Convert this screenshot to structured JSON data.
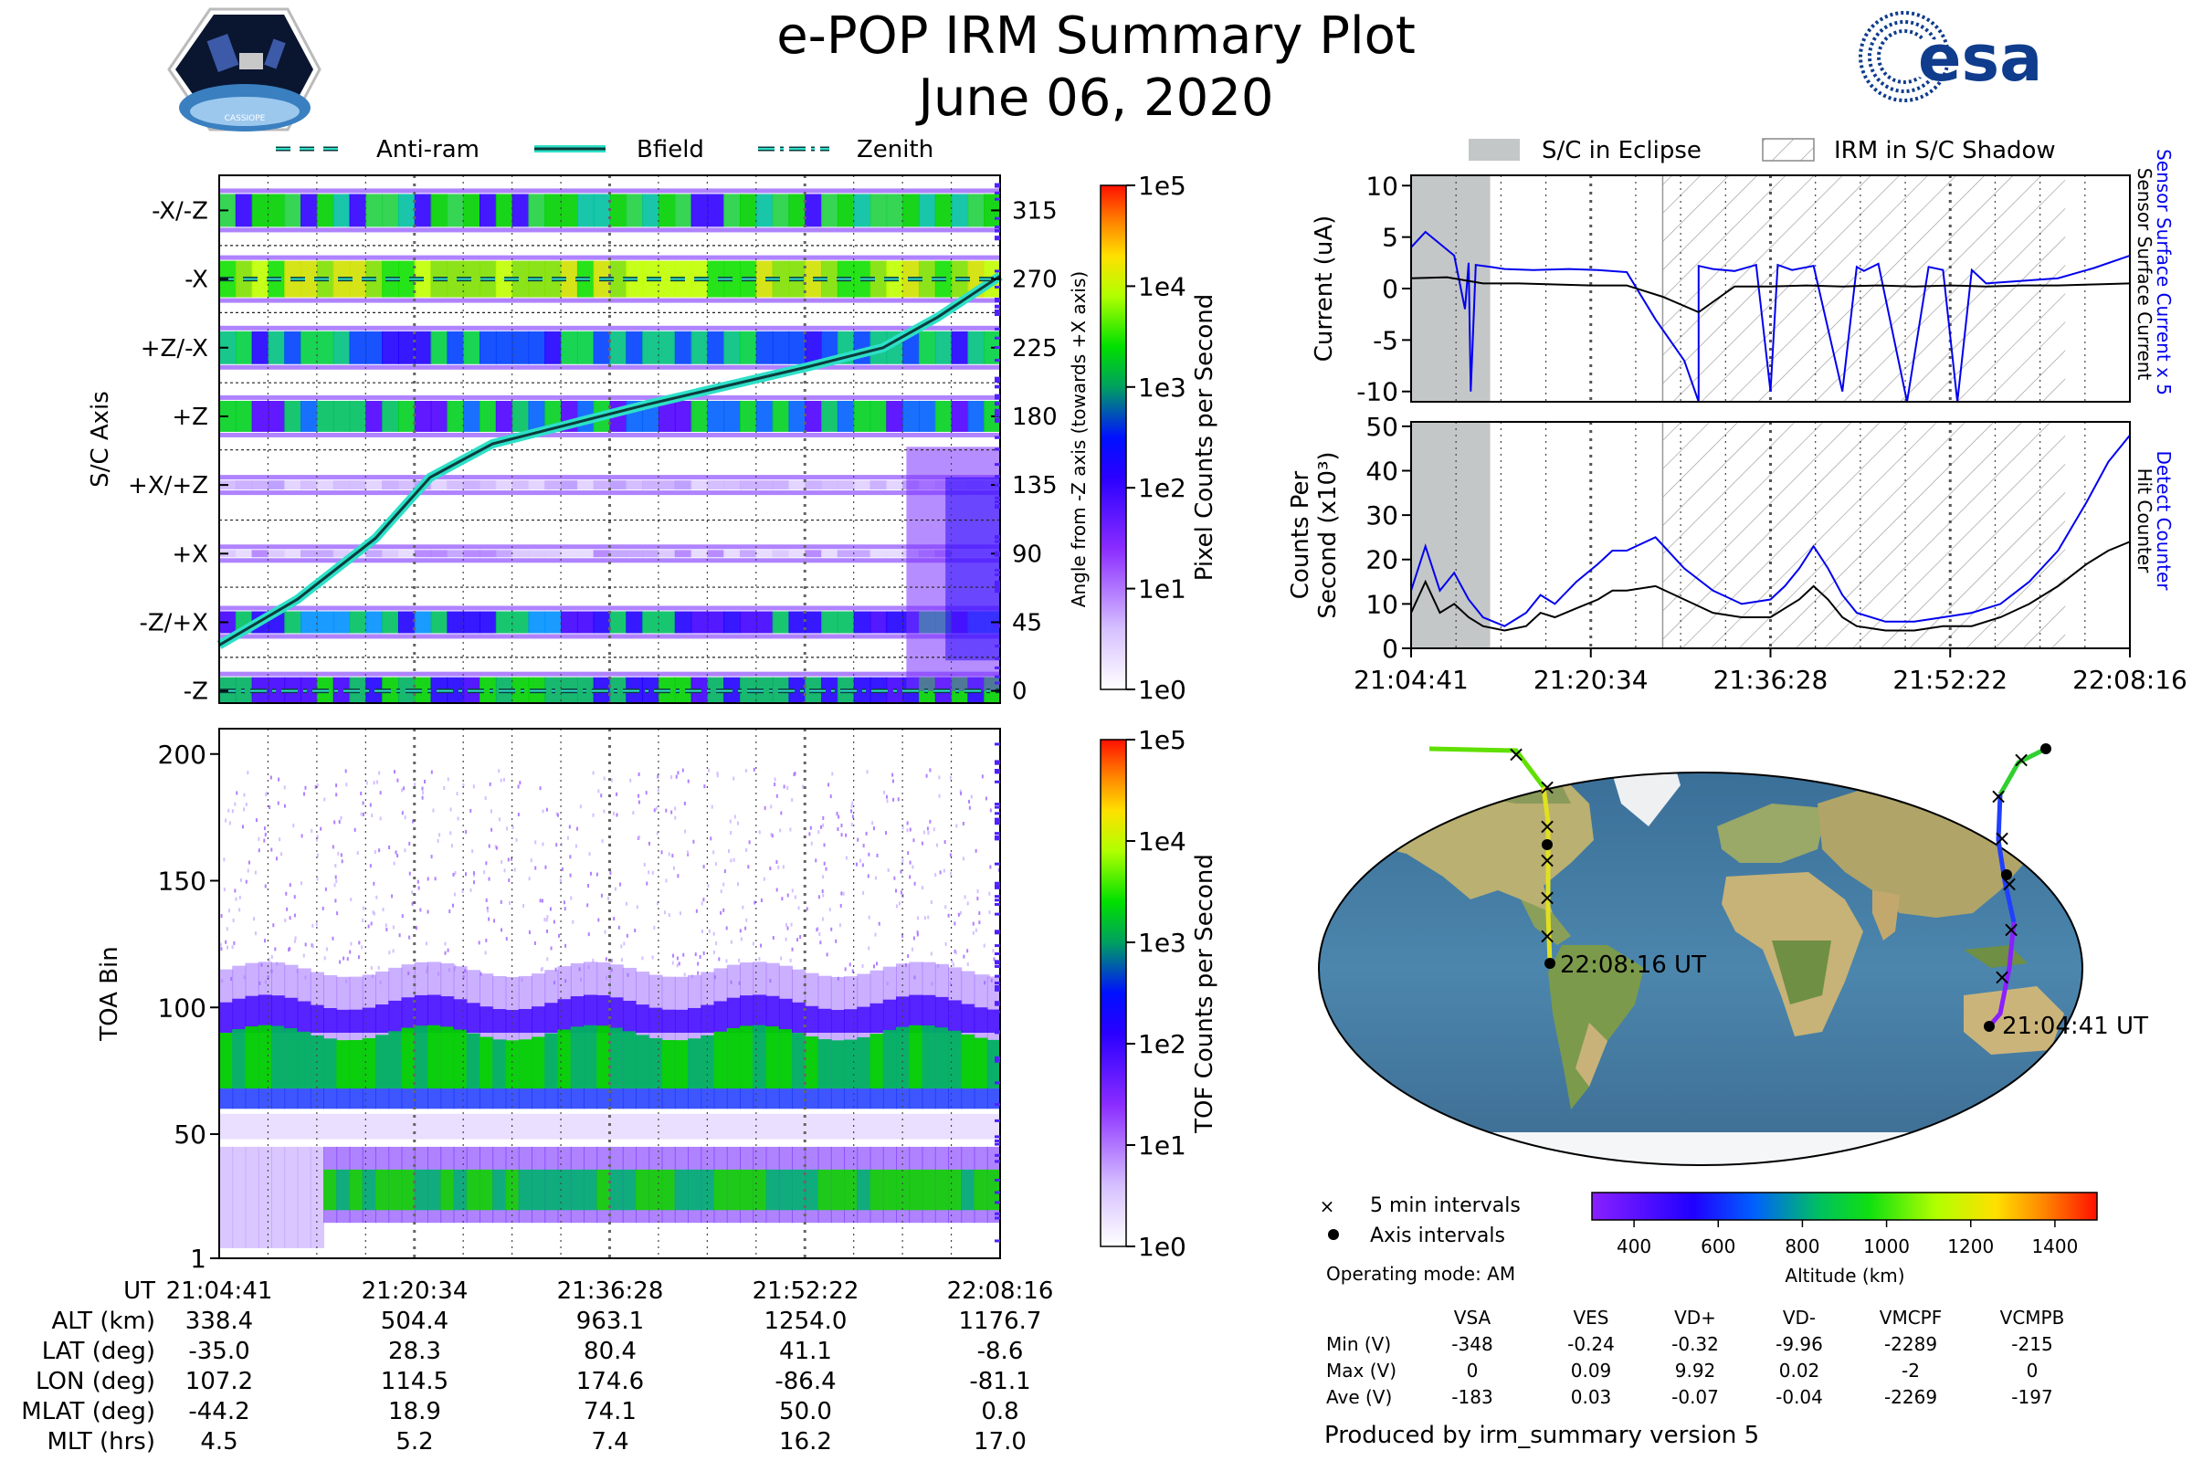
{
  "header": {
    "title": "e-POP IRM Summary Plot",
    "date": "June 06, 2020",
    "cassiope_badge": "CASSIOPE",
    "esa_logo": "esa"
  },
  "colors": {
    "bfield": "#0b3c3c",
    "bfield_glow": "#2de0c8",
    "sensor_current": "#0000ee",
    "eclipse": "#c4c7c7",
    "spectrum": [
      "#ffffff",
      "#dcc8ff",
      "#a040ff",
      "#5000ff",
      "#0000ff",
      "#0090ff",
      "#00c080",
      "#00e000",
      "#80ff00",
      "#ffff00",
      "#ffa000",
      "#ff2000"
    ]
  },
  "legend_top": {
    "items": [
      "Anti-ram",
      "Bfield",
      "Zenith"
    ]
  },
  "legend_right": {
    "eclipse": "S/C in Eclipse",
    "shadow": "IRM in S/C Shadow"
  },
  "chart_data": [
    {
      "id": "sc_axis",
      "type": "heatmap",
      "ylabel": "S/C Axis",
      "ylabel_right": "Angle from -Z axis (towards +X axis)",
      "axis_labels": [
        "-X/-Z",
        "-X",
        "+Z/-X",
        "+Z",
        "+X/+Z",
        "+X",
        "-Z/+X",
        "-Z"
      ],
      "angle_ticks": [
        315,
        270,
        225,
        180,
        135,
        90,
        45,
        0
      ],
      "colorbar": {
        "label": "Pixel Counts per Second",
        "ticks": [
          "1e5",
          "1e4",
          "1e3",
          "1e2",
          "1e1",
          "1e0"
        ]
      },
      "bfield_angle": {
        "x": [
          0,
          0.1,
          0.2,
          0.27,
          0.35,
          0.45,
          0.55,
          0.65,
          0.75,
          0.85,
          0.92,
          1.0
        ],
        "y": [
          30,
          60,
          100,
          140,
          162,
          175,
          188,
          200,
          212,
          225,
          245,
          272
        ]
      },
      "antiram_angle": 270,
      "zenith_angle": 0
    },
    {
      "id": "toa",
      "type": "heatmap",
      "ylabel": "TOA Bin",
      "yticks": [
        200,
        150,
        100,
        50,
        1
      ],
      "ylim": [
        1,
        210
      ],
      "colorbar": {
        "label": "TOF Counts per Second",
        "ticks": [
          "1e5",
          "1e4",
          "1e3",
          "1e2",
          "1e1",
          "1e0"
        ]
      }
    },
    {
      "id": "current",
      "type": "line",
      "ylabel": "Current (uA)",
      "yticks": [
        10,
        5,
        0,
        -5,
        -10
      ],
      "ylim": [
        -11,
        11
      ],
      "right_labels": [
        "Sensor Surface Current x 5",
        "Sensor Surface Current"
      ],
      "series": [
        {
          "name": "Sensor Surface Current x 5",
          "x": [
            0,
            0.02,
            0.06,
            0.075,
            0.08,
            0.083,
            0.09,
            0.11,
            0.13,
            0.17,
            0.22,
            0.26,
            0.3,
            0.34,
            0.38,
            0.4,
            0.4,
            0.42,
            0.45,
            0.48,
            0.5,
            0.51,
            0.53,
            0.56,
            0.6,
            0.62,
            0.63,
            0.65,
            0.69,
            0.72,
            0.74,
            0.76,
            0.78,
            0.8,
            0.84,
            0.9,
            0.95,
            1.0
          ],
          "y": [
            4,
            5.5,
            3.2,
            -2,
            2.5,
            -10,
            2.3,
            2.1,
            1.9,
            1.8,
            1.9,
            1.8,
            1.6,
            -3,
            -7,
            -11,
            2.2,
            1.9,
            1.7,
            2.3,
            -10,
            2.3,
            1.8,
            2.2,
            -10,
            2.1,
            1.7,
            2.4,
            -11,
            2.1,
            1.8,
            -11,
            1.8,
            0.5,
            0.7,
            1,
            2,
            3.2
          ]
        },
        {
          "name": "Sensor Surface Current",
          "x": [
            0,
            0.05,
            0.1,
            0.15,
            0.2,
            0.25,
            0.3,
            0.35,
            0.4,
            0.45,
            0.5,
            0.55,
            0.6,
            0.65,
            0.7,
            0.75,
            0.8,
            0.85,
            0.9,
            0.95,
            1.0
          ],
          "y": [
            1,
            1.1,
            0.5,
            0.5,
            0.4,
            0.3,
            0.3,
            -0.8,
            -2.3,
            0.2,
            0.2,
            0.3,
            0.2,
            0.3,
            0.2,
            0.3,
            0.2,
            0.3,
            0.3,
            0.4,
            0.5
          ]
        }
      ]
    },
    {
      "id": "counts",
      "type": "line",
      "ylabel": "Counts Per Second (x10³)",
      "ylabel_line1": "Counts Per",
      "ylabel_line2": "Second (x10³)",
      "yticks": [
        50,
        40,
        30,
        20,
        10,
        0
      ],
      "ylim": [
        0,
        51
      ],
      "right_labels": [
        "Detect Counter",
        "Hit Counter"
      ],
      "xticks": [
        "21:04:41",
        "21:20:34",
        "21:36:28",
        "21:52:22",
        "22:08:16"
      ],
      "eclipse_range": [
        0,
        0.11
      ],
      "shadow_range": [
        0.35,
        0.91
      ],
      "series": [
        {
          "name": "Detect Counter",
          "x": [
            0,
            0.02,
            0.04,
            0.06,
            0.08,
            0.1,
            0.13,
            0.16,
            0.18,
            0.2,
            0.23,
            0.26,
            0.28,
            0.3,
            0.34,
            0.38,
            0.42,
            0.46,
            0.5,
            0.52,
            0.54,
            0.56,
            0.58,
            0.6,
            0.62,
            0.66,
            0.7,
            0.74,
            0.78,
            0.82,
            0.86,
            0.9,
            0.94,
            0.97,
            1.0
          ],
          "y": [
            13,
            23,
            13,
            17,
            11,
            7,
            5,
            8,
            12,
            10,
            15,
            19,
            22,
            22,
            25,
            18,
            13,
            10,
            11,
            14,
            18,
            23,
            18,
            12,
            8,
            6,
            6,
            7,
            8,
            10,
            15,
            22,
            33,
            42,
            48
          ]
        },
        {
          "name": "Hit Counter",
          "x": [
            0,
            0.02,
            0.04,
            0.06,
            0.08,
            0.1,
            0.13,
            0.16,
            0.18,
            0.2,
            0.23,
            0.26,
            0.28,
            0.3,
            0.34,
            0.38,
            0.42,
            0.46,
            0.5,
            0.52,
            0.54,
            0.56,
            0.58,
            0.6,
            0.62,
            0.66,
            0.7,
            0.74,
            0.78,
            0.82,
            0.86,
            0.9,
            0.94,
            0.97,
            1.0
          ],
          "y": [
            8,
            15,
            8,
            10,
            7,
            5,
            4,
            5,
            8,
            7,
            9,
            11,
            13,
            13,
            14,
            11,
            8,
            7,
            7,
            9,
            11,
            14,
            11,
            7,
            5,
            4,
            4,
            5,
            5,
            7,
            10,
            14,
            19,
            22,
            24
          ]
        }
      ]
    },
    {
      "id": "map",
      "type": "scatter",
      "start_label": "22:08:16 UT",
      "end_label": "21:04:41 UT",
      "colorbar": {
        "label": "Altitude (km)",
        "ticks": [
          400,
          600,
          800,
          1000,
          1200,
          1400
        ],
        "range": [
          300,
          1500
        ]
      },
      "legend": [
        "5 min intervals",
        "Axis intervals"
      ],
      "operating_mode": "Operating mode: AM"
    }
  ],
  "coordinates_table": {
    "row_labels": [
      "UT",
      "ALT (km)",
      "LAT (deg)",
      "LON (deg)",
      "MLAT (deg)",
      "MLT (hrs)"
    ],
    "columns": [
      [
        "21:04:41",
        "338.4",
        "-35.0",
        "107.2",
        "-44.2",
        "4.5"
      ],
      [
        "21:20:34",
        "504.4",
        "28.3",
        "114.5",
        "18.9",
        "5.2"
      ],
      [
        "21:36:28",
        "963.1",
        "80.4",
        "174.6",
        "74.1",
        "7.4"
      ],
      [
        "21:52:22",
        "1254.0",
        "41.1",
        "-86.4",
        "50.0",
        "16.2"
      ],
      [
        "22:08:16",
        "1176.7",
        "-8.6",
        "-81.1",
        "0.8",
        "17.0"
      ]
    ]
  },
  "voltage_table": {
    "headers": [
      "VSA",
      "VES",
      "VD+",
      "VD-",
      "VMCPF",
      "VCMPB"
    ],
    "rows": [
      {
        "label": "Min (V)",
        "values": [
          "-348",
          "-0.24",
          "-0.32",
          "-9.96",
          "-2289",
          "-215"
        ]
      },
      {
        "label": "Max (V)",
        "values": [
          "0",
          "0.09",
          "9.92",
          "0.02",
          "-2",
          "0"
        ]
      },
      {
        "label": "Ave (V)",
        "values": [
          "-183",
          "0.03",
          "-0.07",
          "-0.04",
          "-2269",
          "-197"
        ]
      }
    ]
  },
  "footer": "Produced by irm_summary version 5"
}
